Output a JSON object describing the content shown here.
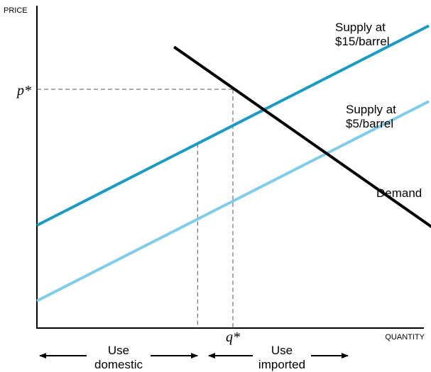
{
  "chart_data": {
    "type": "line",
    "ylabel": "PRICE",
    "xlabel": "QUANTITY",
    "y_marker_label": "p*",
    "x_marker_label": "q*",
    "series": [
      {
        "name": "Supply at $15/barrel",
        "label_lines": [
          "Supply at",
          "$15/barrel"
        ],
        "color": "#1a9bc3",
        "points": [
          [
            0,
            0.34
          ],
          [
            1.0,
            1.0
          ]
        ]
      },
      {
        "name": "Supply at $5/barrel",
        "label_lines": [
          "Supply at",
          "$5/barrel"
        ],
        "color": "#7fcde6",
        "points": [
          [
            0,
            0.09
          ],
          [
            1.0,
            0.75
          ]
        ]
      },
      {
        "name": "Demand",
        "label_lines": [
          "Demand"
        ],
        "color": "#000000",
        "points": [
          [
            0.35,
            0.93
          ],
          [
            1.2,
            0.16
          ]
        ]
      }
    ],
    "equilibrium": {
      "q": 0.5,
      "p": 0.79
    },
    "domestic_q": 0.41,
    "bottom_labels": {
      "domestic": [
        "Use",
        "domestic"
      ],
      "imported": [
        "Use",
        "imported"
      ]
    }
  }
}
